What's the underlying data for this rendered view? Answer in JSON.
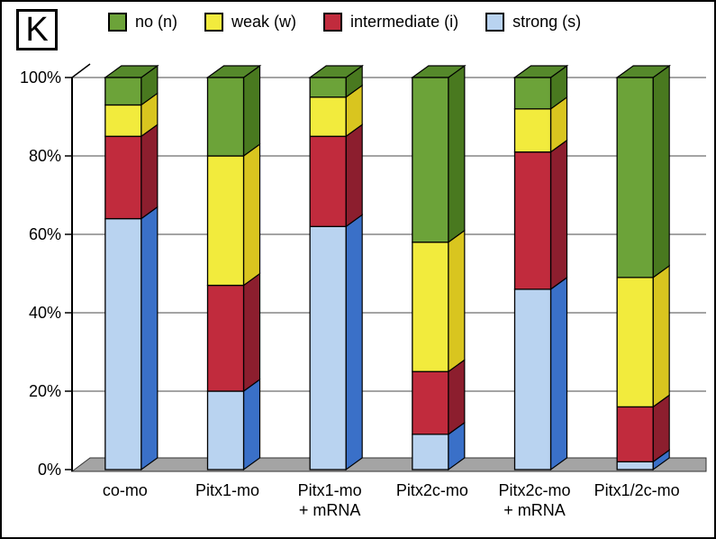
{
  "panel_label": "K",
  "legend": [
    {
      "label": "no (n)",
      "color": "#6CA339"
    },
    {
      "label": "weak (w)",
      "color": "#F2EB3D"
    },
    {
      "label": "intermediate (i)",
      "color": "#C12B3D"
    },
    {
      "label": "strong (s)",
      "color": "#B9D3F0"
    }
  ],
  "chart_data": {
    "type": "bar",
    "stacked": true,
    "percent": true,
    "title": "",
    "xlabel": "",
    "ylabel": "",
    "ylim": [
      0,
      100
    ],
    "grid": true,
    "legend_position": "top",
    "yticks": [
      "0%",
      "20%",
      "40%",
      "60%",
      "80%",
      "100%"
    ],
    "ytick_values": [
      0,
      20,
      40,
      60,
      80,
      100
    ],
    "categories": [
      "co-mo",
      "Pitx1-mo",
      "Pitx1-mo\n+ mRNA",
      "Pitx2c-mo",
      "Pitx2c-mo\n+ mRNA",
      "Pitx1/2c-mo"
    ],
    "series": [
      {
        "name": "strong (s)",
        "color": "#B9D3F0",
        "side_color": "#3A70C8",
        "values": [
          64,
          20,
          62,
          9,
          46,
          2
        ]
      },
      {
        "name": "intermediate (i)",
        "color": "#C12B3D",
        "side_color": "#8C1E2E",
        "values": [
          21,
          27,
          23,
          16,
          35,
          14
        ]
      },
      {
        "name": "weak (w)",
        "color": "#F2EB3D",
        "side_color": "#D9C51F",
        "values": [
          8,
          33,
          10,
          33,
          11,
          33
        ]
      },
      {
        "name": "no (n)",
        "color": "#6CA339",
        "side_color": "#49791F",
        "top_color": "#55892B",
        "values": [
          7,
          20,
          5,
          42,
          8,
          51
        ]
      }
    ],
    "colors": {
      "floor": "#A4A4A4",
      "gridline": "#6e6e6e",
      "axis": "#000000"
    }
  }
}
